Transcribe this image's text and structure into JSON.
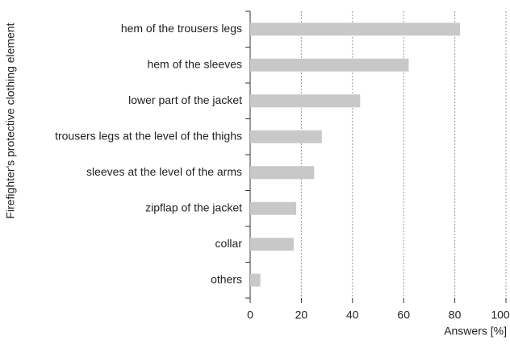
{
  "chart_data": {
    "type": "bar",
    "orientation": "horizontal",
    "y_axis_label": "Firefighter's protective clothing element",
    "x_axis_label": "Answers [%]",
    "categories": [
      "hem of the trousers legs",
      "hem of the sleeves",
      "lower part of the jacket",
      "trousers legs at the level of the thighs",
      "sleeves at the level of the arms",
      "zipflap of the jacket",
      "collar",
      "others"
    ],
    "values": [
      82,
      62,
      43,
      28,
      25,
      18,
      17,
      4
    ],
    "color": "#c8c8c8",
    "xlim": [
      0,
      100
    ],
    "xticks": [
      0,
      20,
      40,
      60,
      80,
      100
    ],
    "grid": true
  }
}
